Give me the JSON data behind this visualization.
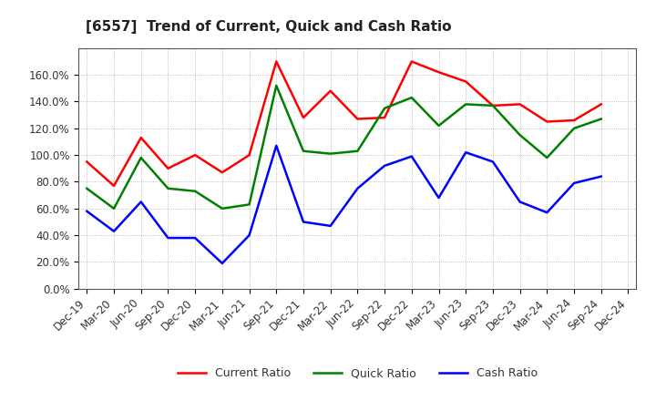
{
  "title": "[6557]  Trend of Current, Quick and Cash Ratio",
  "x_labels": [
    "Dec-19",
    "Mar-20",
    "Jun-20",
    "Sep-20",
    "Dec-20",
    "Mar-21",
    "Jun-21",
    "Sep-21",
    "Dec-21",
    "Mar-22",
    "Jun-22",
    "Sep-22",
    "Dec-22",
    "Mar-23",
    "Jun-23",
    "Sep-23",
    "Dec-23",
    "Mar-24",
    "Jun-24",
    "Sep-24",
    "Dec-24"
  ],
  "current_ratio": [
    95.0,
    77.0,
    113.0,
    90.0,
    100.0,
    87.0,
    100.0,
    170.0,
    128.0,
    148.0,
    127.0,
    128.0,
    170.0,
    162.0,
    155.0,
    137.0,
    138.0,
    125.0,
    126.0,
    138.0,
    null
  ],
  "quick_ratio": [
    75.0,
    60.0,
    98.0,
    75.0,
    73.0,
    60.0,
    63.0,
    152.0,
    103.0,
    101.0,
    103.0,
    135.0,
    143.0,
    122.0,
    138.0,
    137.0,
    115.0,
    98.0,
    120.0,
    127.0,
    null
  ],
  "cash_ratio": [
    58.0,
    43.0,
    65.0,
    38.0,
    38.0,
    19.0,
    40.0,
    107.0,
    50.0,
    47.0,
    75.0,
    92.0,
    99.0,
    68.0,
    102.0,
    95.0,
    65.0,
    57.0,
    79.0,
    84.0,
    null
  ],
  "current_color": "#FF0000",
  "quick_color": "#008000",
  "cash_color": "#0000FF",
  "ylim_min": 0.0,
  "ylim_max": 1.8,
  "yticks": [
    0.0,
    0.2,
    0.4,
    0.6,
    0.8,
    1.0,
    1.2,
    1.4,
    1.6
  ],
  "ytick_labels": [
    "0.0%",
    "20.0%",
    "40.0%",
    "60.0%",
    "80.0%",
    "100.0%",
    "120.0%",
    "140.0%",
    "160.0%"
  ],
  "legend_labels": [
    "Current Ratio",
    "Quick Ratio",
    "Cash Ratio"
  ],
  "bg_color": "#FFFFFF",
  "plot_bg_color": "#FFFFFF",
  "grid_color": "#AAAAAA",
  "line_width": 1.8,
  "title_fontsize": 11,
  "tick_fontsize": 8.5
}
